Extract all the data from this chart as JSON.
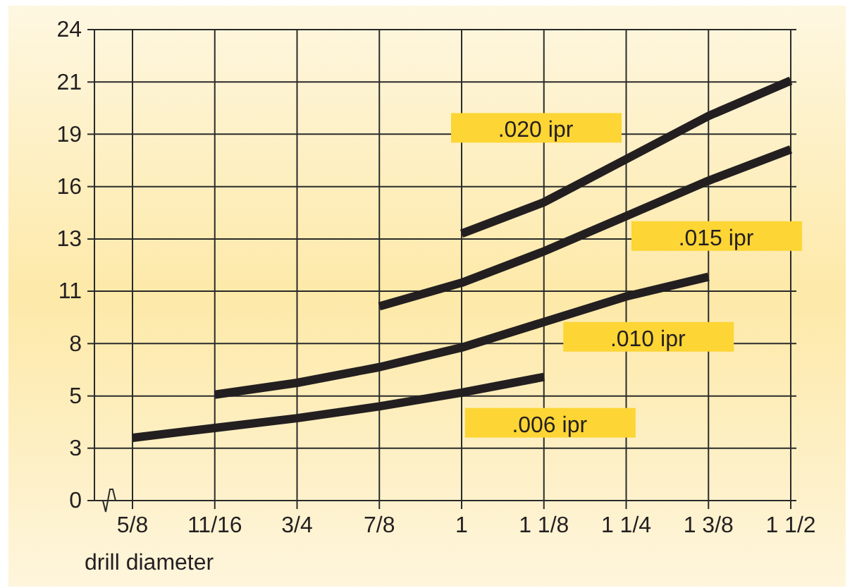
{
  "chart_data": {
    "type": "line",
    "xlabel": "drill diameter",
    "categories": [
      "5/8",
      "11/16",
      "3/4",
      "7/8",
      "1",
      "1 1/8",
      "1 1/4",
      "1 3/8",
      "1 1/2"
    ],
    "ylim": [
      0,
      24
    ],
    "yticks": [
      0,
      {
        "value": 2.67,
        "label": "3"
      },
      {
        "value": 5.33,
        "label": "5"
      },
      8,
      {
        "value": 10.67,
        "label": "11"
      },
      {
        "value": 13.33,
        "label": "13"
      },
      16,
      {
        "value": 18.67,
        "label": "19"
      },
      {
        "value": 21.33,
        "label": "21"
      },
      24
    ],
    "grid": true,
    "legend": false,
    "series": [
      {
        "name": ".020 ipr",
        "color": "#231f20",
        "values": [
          null,
          null,
          null,
          null,
          13.6,
          15.2,
          17.4,
          19.6,
          21.4
        ]
      },
      {
        "name": ".015 ipr",
        "color": "#231f20",
        "values": [
          null,
          null,
          null,
          9.9,
          11.1,
          12.7,
          14.5,
          16.3,
          17.9
        ]
      },
      {
        "name": ".010 ipr",
        "color": "#231f20",
        "values": [
          null,
          5.4,
          6.0,
          6.8,
          7.8,
          9.1,
          10.4,
          11.4,
          null
        ]
      },
      {
        "name": ".006 ipr",
        "color": "#231f20",
        "values": [
          3.2,
          3.7,
          4.2,
          4.8,
          5.5,
          6.3,
          null,
          null,
          null
        ]
      }
    ]
  }
}
